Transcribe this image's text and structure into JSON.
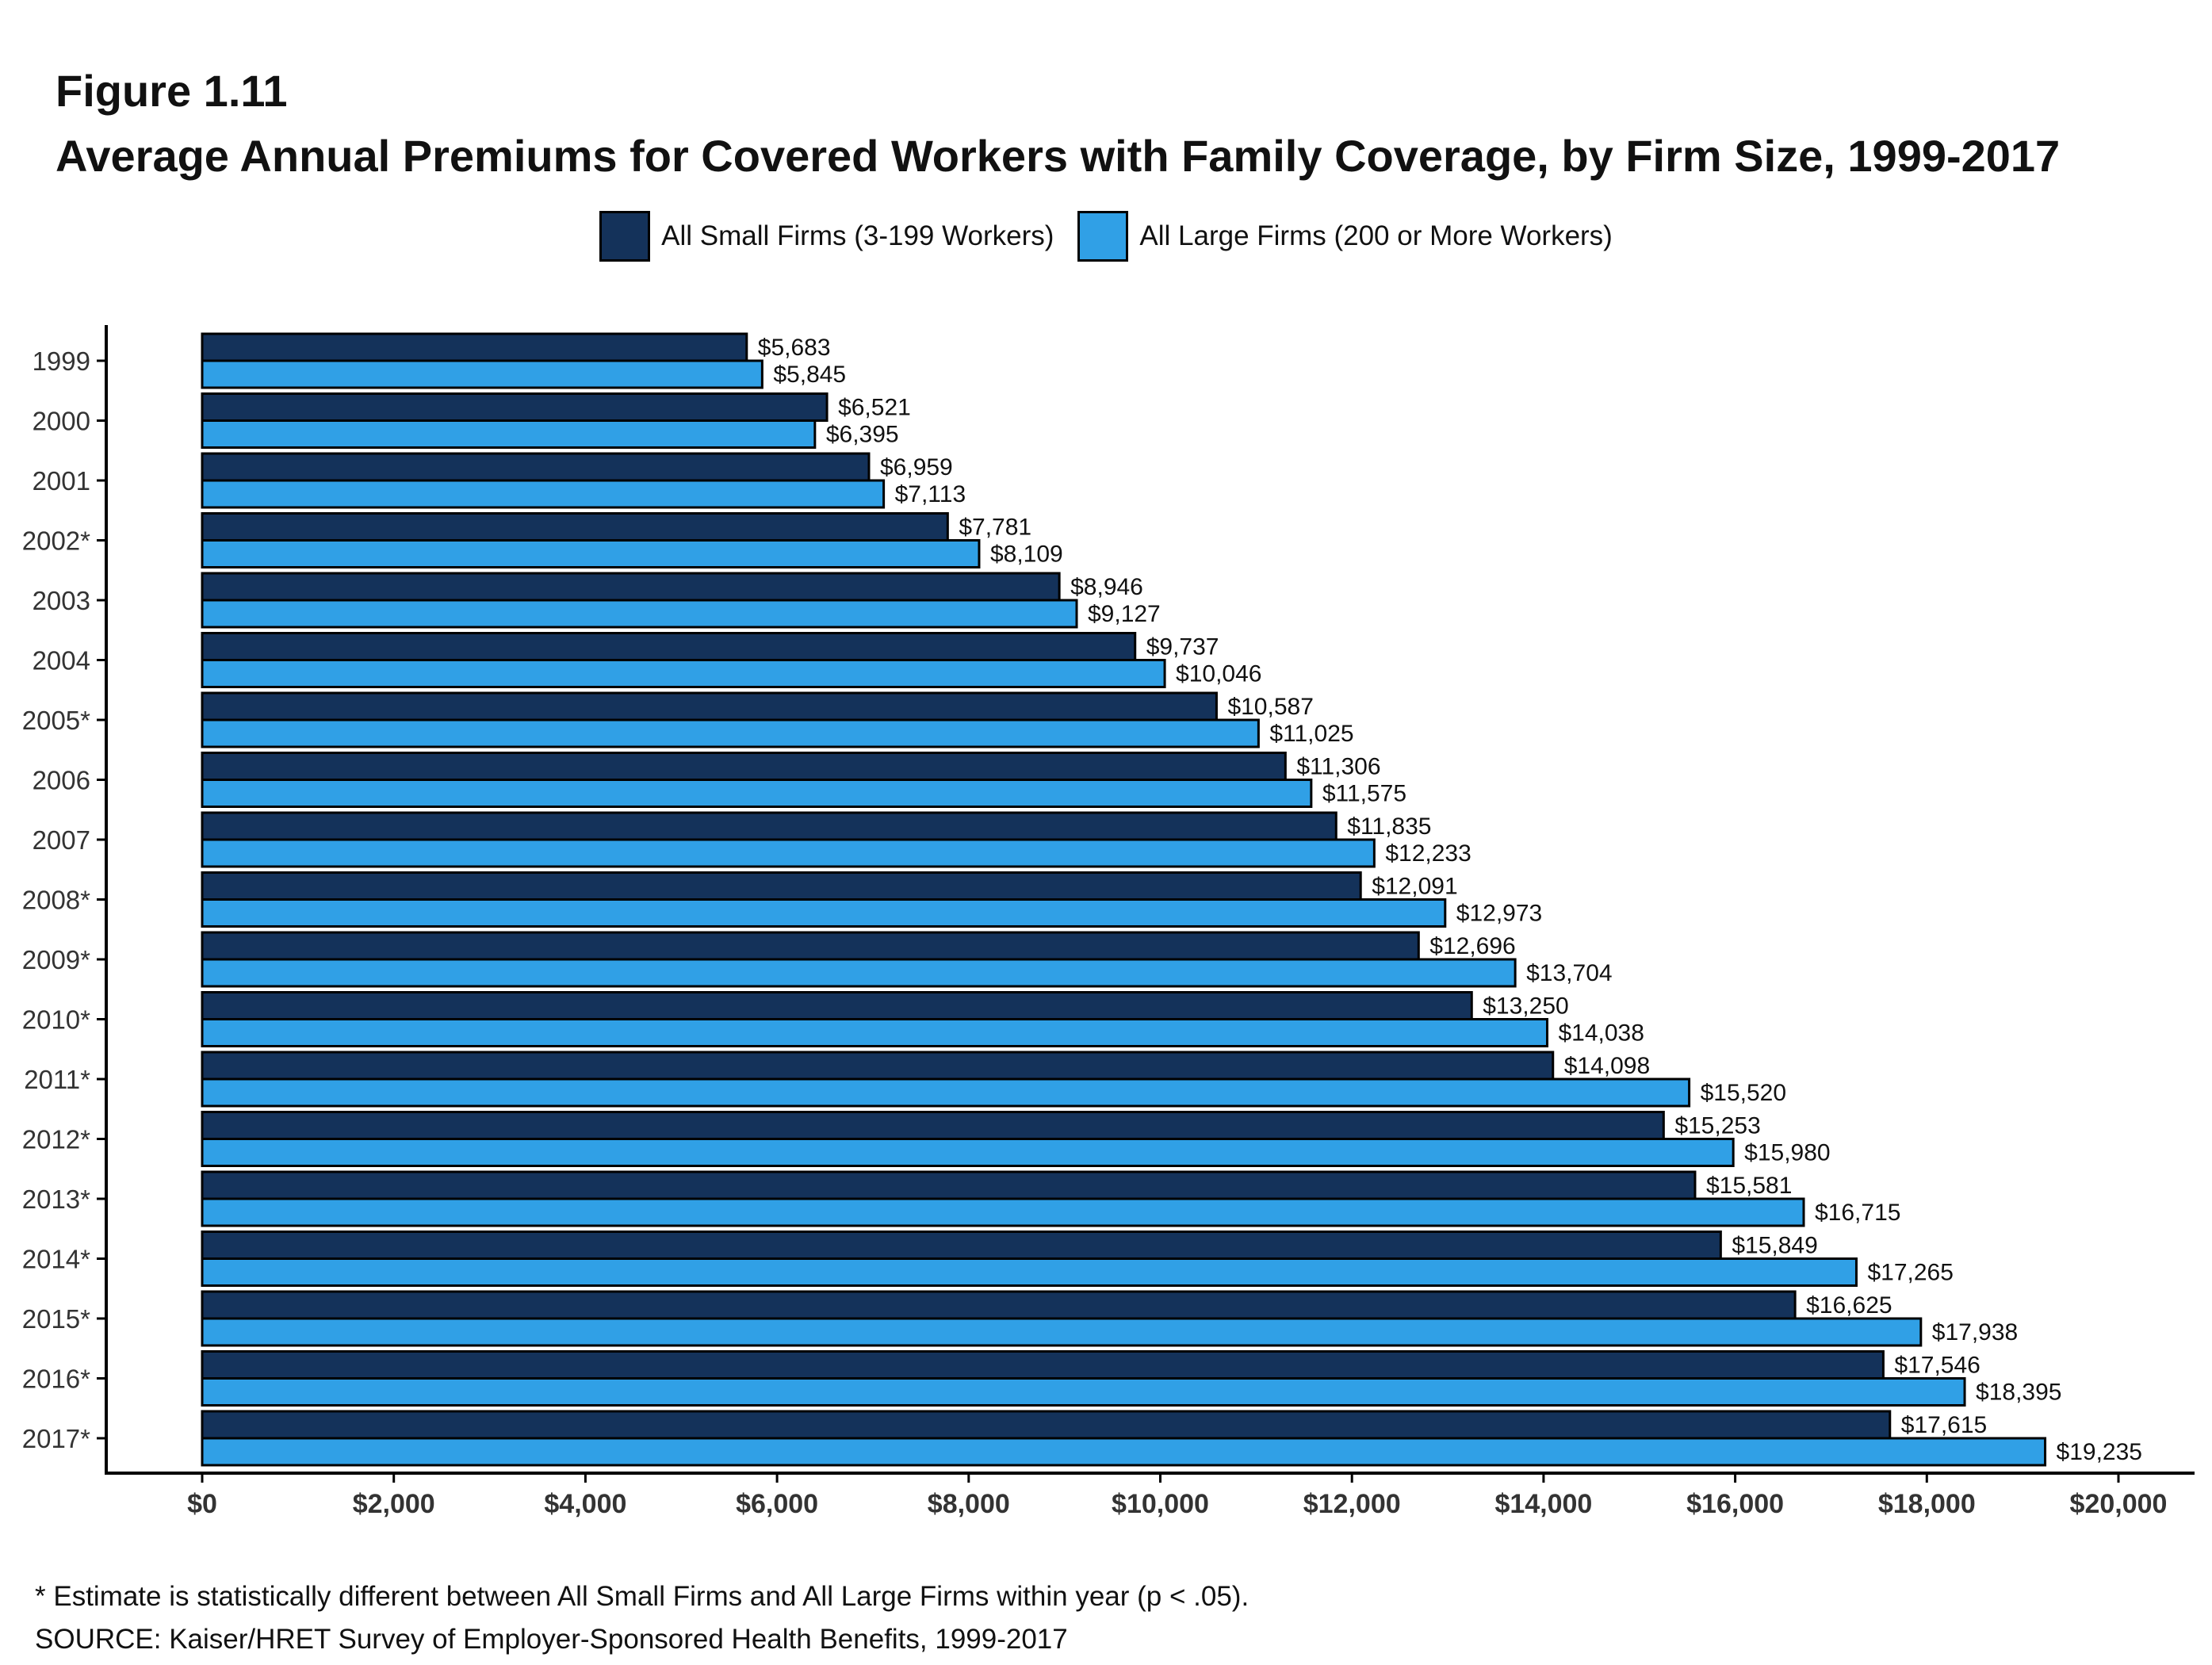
{
  "figure_label": "Figure 1.11",
  "chart_data": {
    "type": "bar",
    "orientation": "horizontal",
    "title": "Average Annual Premiums for Covered Workers with Family Coverage, by Firm Size, 1999-2017",
    "xlabel": "",
    "ylabel": "",
    "xlim": [
      0,
      20000
    ],
    "x_ticks": [
      0,
      2000,
      4000,
      6000,
      8000,
      10000,
      12000,
      14000,
      16000,
      18000,
      20000
    ],
    "x_tick_labels": [
      "$0",
      "$2,000",
      "$4,000",
      "$6,000",
      "$8,000",
      "$10,000",
      "$12,000",
      "$14,000",
      "$16,000",
      "$18,000",
      "$20,000"
    ],
    "grid": false,
    "legend_position": "top-center",
    "categories": [
      "1999",
      "2000",
      "2001",
      "2002*",
      "2003",
      "2004",
      "2005*",
      "2006",
      "2007",
      "2008*",
      "2009*",
      "2010*",
      "2011*",
      "2012*",
      "2013*",
      "2014*",
      "2015*",
      "2016*",
      "2017*"
    ],
    "series": [
      {
        "name": "All Small Firms (3-199 Workers)",
        "color": "#14325a",
        "values": [
          5683,
          6521,
          6959,
          7781,
          8946,
          9737,
          10587,
          11306,
          11835,
          12091,
          12696,
          13250,
          14098,
          15253,
          15581,
          15849,
          16625,
          17546,
          17615
        ],
        "labels": [
          "$5,683",
          "$6,521",
          "$6,959",
          "$7,781",
          "$8,946",
          "$9,737",
          "$10,587",
          "$11,306",
          "$11,835",
          "$12,091",
          "$12,696",
          "$13,250",
          "$14,098",
          "$15,253",
          "$15,581",
          "$15,849",
          "$16,625",
          "$17,546",
          "$17,615"
        ]
      },
      {
        "name": "All Large Firms (200 or More Workers)",
        "color": "#30a0e6",
        "values": [
          5845,
          6395,
          7113,
          8109,
          9127,
          10046,
          11025,
          11575,
          12233,
          12973,
          13704,
          14038,
          15520,
          15980,
          16715,
          17265,
          17938,
          18395,
          19235
        ],
        "labels": [
          "$5,845",
          "$6,395",
          "$7,113",
          "$8,109",
          "$9,127",
          "$10,046",
          "$11,025",
          "$11,575",
          "$12,233",
          "$12,973",
          "$13,704",
          "$14,038",
          "$15,520",
          "$15,980",
          "$16,715",
          "$17,265",
          "$17,938",
          "$18,395",
          "$19,235"
        ]
      }
    ]
  },
  "footnote": "* Estimate is statistically different between All Small Firms and All Large Firms within year (p < .05).",
  "source": "SOURCE: Kaiser/HRET Survey of Employer-Sponsored Health Benefits, 1999-2017"
}
